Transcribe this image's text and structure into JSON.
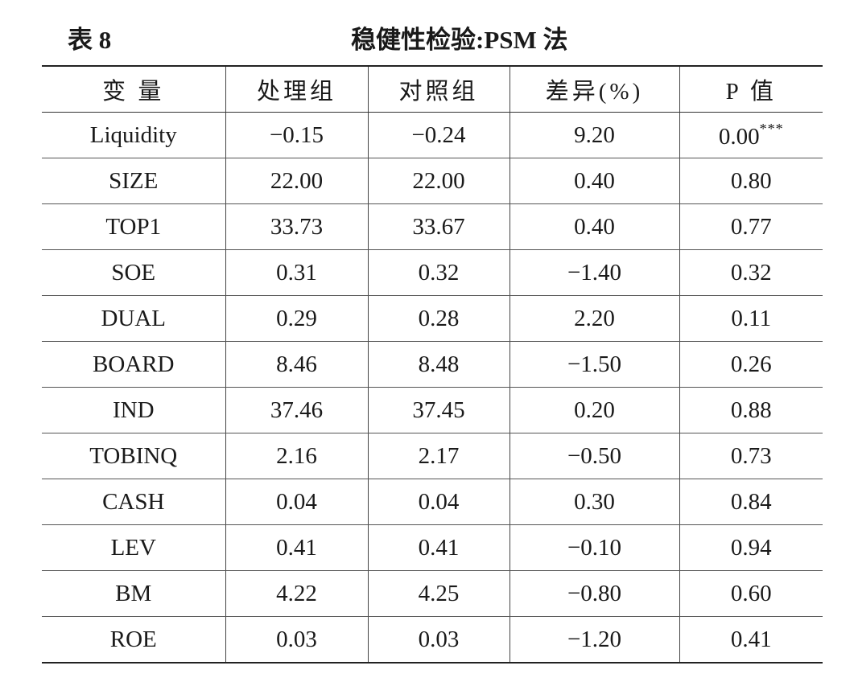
{
  "caption": {
    "table_no": "表 8",
    "title": "稳健性检验:PSM 法"
  },
  "table": {
    "headers": [
      "变 量",
      "处理组",
      "对照组",
      "差异(%)",
      "P 值"
    ],
    "rows": [
      {
        "variable": "Liquidity",
        "treated": "−0.15",
        "control": "−0.24",
        "diff": "9.20",
        "p": "0.00",
        "sig": "***"
      },
      {
        "variable": "SIZE",
        "treated": "22.00",
        "control": "22.00",
        "diff": "0.40",
        "p": "0.80",
        "sig": ""
      },
      {
        "variable": "TOP1",
        "treated": "33.73",
        "control": "33.67",
        "diff": "0.40",
        "p": "0.77",
        "sig": ""
      },
      {
        "variable": "SOE",
        "treated": "0.31",
        "control": "0.32",
        "diff": "−1.40",
        "p": "0.32",
        "sig": ""
      },
      {
        "variable": "DUAL",
        "treated": "0.29",
        "control": "0.28",
        "diff": "2.20",
        "p": "0.11",
        "sig": ""
      },
      {
        "variable": "BOARD",
        "treated": "8.46",
        "control": "8.48",
        "diff": "−1.50",
        "p": "0.26",
        "sig": ""
      },
      {
        "variable": "IND",
        "treated": "37.46",
        "control": "37.45",
        "diff": "0.20",
        "p": "0.88",
        "sig": ""
      },
      {
        "variable": "TOBINQ",
        "treated": "2.16",
        "control": "2.17",
        "diff": "−0.50",
        "p": "0.73",
        "sig": ""
      },
      {
        "variable": "CASH",
        "treated": "0.04",
        "control": "0.04",
        "diff": "0.30",
        "p": "0.84",
        "sig": ""
      },
      {
        "variable": "LEV",
        "treated": "0.41",
        "control": "0.41",
        "diff": "−0.10",
        "p": "0.94",
        "sig": ""
      },
      {
        "variable": "BM",
        "treated": "4.22",
        "control": "4.25",
        "diff": "−0.80",
        "p": "0.60",
        "sig": ""
      },
      {
        "variable": "ROE",
        "treated": "0.03",
        "control": "0.03",
        "diff": "−1.20",
        "p": "0.41",
        "sig": ""
      }
    ]
  }
}
